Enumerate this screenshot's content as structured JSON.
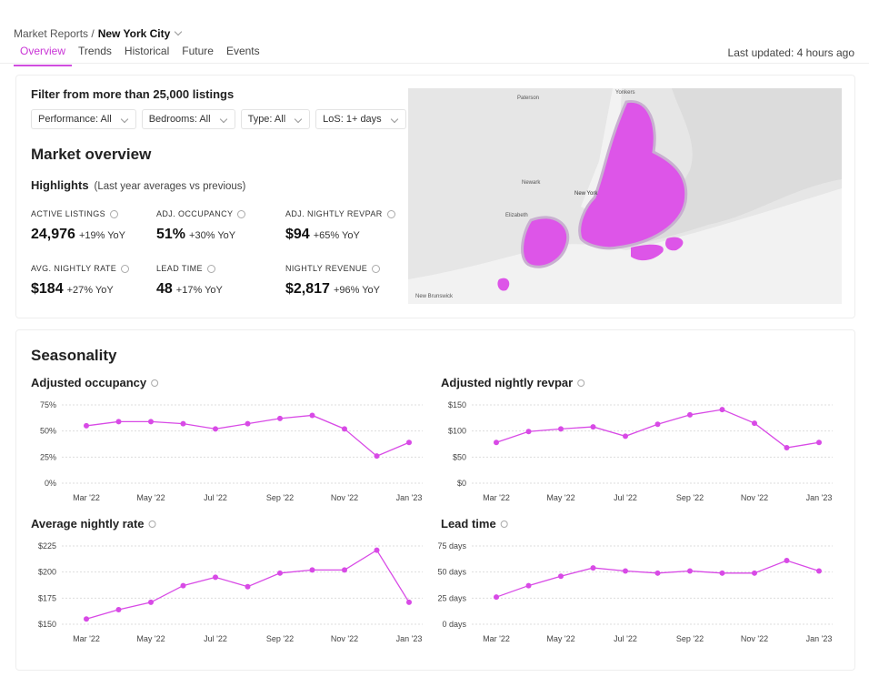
{
  "breadcrumb": {
    "parent": "Market Reports /",
    "current": "New York City"
  },
  "tabs": [
    "Overview",
    "Trends",
    "Historical",
    "Future",
    "Events"
  ],
  "last_updated": "Last updated: 4 hours ago",
  "filter_title": "Filter from more than 25,000 listings",
  "filters": [
    "Performance: All",
    "Bedrooms: All",
    "Type: All",
    "LoS: 1+ days"
  ],
  "market_overview": "Market overview",
  "highlights": {
    "title": "Highlights",
    "note": "(Last year averages vs previous)"
  },
  "metrics": [
    {
      "label": "ACTIVE LISTINGS",
      "value": "24,976",
      "change": "+19% YoY"
    },
    {
      "label": "ADJ. OCCUPANCY",
      "value": "51%",
      "change": "+30% YoY"
    },
    {
      "label": "ADJ. NIGHTLY REVPAR",
      "value": "$94",
      "change": "+65% YoY"
    },
    {
      "label": "AVG. NIGHTLY RATE",
      "value": "$184",
      "change": "+27% YoY"
    },
    {
      "label": "LEAD TIME",
      "value": "48",
      "change": "+17% YoY"
    },
    {
      "label": "NIGHTLY REVENUE",
      "value": "$2,817",
      "change": "+96% YoY"
    }
  ],
  "map": {
    "labels": [
      "Paterson",
      "Yonkers",
      "Newark",
      "New York",
      "Elizabeth",
      "New Brunswick"
    ]
  },
  "seasonality": "Seasonality",
  "chart_data": [
    {
      "type": "line",
      "title": "Adjusted occupancy",
      "color": "#d84ae6",
      "categories": [
        "Mar '22",
        null,
        "May '22",
        null,
        "Jul '22",
        null,
        "Sep '22",
        null,
        "Nov '22",
        null,
        "Jan '23"
      ],
      "values": [
        55,
        59,
        59,
        57,
        52,
        57,
        62,
        65,
        52,
        26,
        39
      ],
      "ylim": [
        0,
        75
      ],
      "yticks": [
        {
          "value": 0,
          "label": "0%"
        },
        {
          "value": 25,
          "label": "25%"
        },
        {
          "value": 50,
          "label": "50%"
        },
        {
          "value": 75,
          "label": "75%"
        }
      ],
      "grid": true
    },
    {
      "type": "line",
      "title": "Adjusted nightly revpar",
      "color": "#d84ae6",
      "categories": [
        "Mar '22",
        null,
        "May '22",
        null,
        "Jul '22",
        null,
        "Sep '22",
        null,
        "Nov '22",
        null,
        "Jan '23"
      ],
      "values": [
        78,
        99,
        104,
        108,
        90,
        113,
        131,
        141,
        115,
        68,
        78
      ],
      "ylim": [
        0,
        150
      ],
      "yticks": [
        {
          "value": 0,
          "label": "$0"
        },
        {
          "value": 50,
          "label": "$50"
        },
        {
          "value": 100,
          "label": "$100"
        },
        {
          "value": 150,
          "label": "$150"
        }
      ],
      "grid": true
    },
    {
      "type": "line",
      "title": "Average nightly rate",
      "color": "#d84ae6",
      "categories": [
        "Mar '22",
        null,
        "May '22",
        null,
        "Jul '22",
        null,
        "Sep '22",
        null,
        "Nov '22",
        null,
        "Jan '23"
      ],
      "values": [
        155,
        164,
        171,
        187,
        195,
        186,
        199,
        202,
        202,
        221,
        171
      ],
      "ylim": [
        150,
        225
      ],
      "yticks": [
        {
          "value": 150,
          "label": "$150"
        },
        {
          "value": 175,
          "label": "$175"
        },
        {
          "value": 200,
          "label": "$200"
        },
        {
          "value": 225,
          "label": "$225"
        }
      ],
      "grid": true
    },
    {
      "type": "line",
      "title": "Lead time",
      "color": "#d84ae6",
      "categories": [
        "Mar '22",
        null,
        "May '22",
        null,
        "Jul '22",
        null,
        "Sep '22",
        null,
        "Nov '22",
        null,
        "Jan '23"
      ],
      "values": [
        26,
        37,
        46,
        54,
        51,
        49,
        51,
        49,
        49,
        61,
        51
      ],
      "ylim": [
        0,
        75
      ],
      "yticks": [
        {
          "value": 0,
          "label": "0 days"
        },
        {
          "value": 25,
          "label": "25 days"
        },
        {
          "value": 50,
          "label": "50 days"
        },
        {
          "value": 75,
          "label": "75 days"
        }
      ],
      "grid": true
    }
  ]
}
